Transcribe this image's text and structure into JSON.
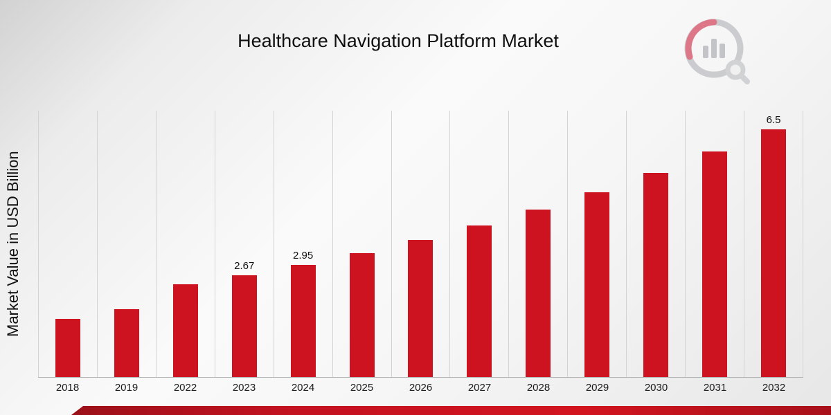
{
  "page": {
    "title": "Healthcare Navigation Platform Market"
  },
  "chart_data": {
    "type": "bar",
    "title": "Healthcare Navigation Platform Market",
    "xlabel": "",
    "ylabel": "Market Value in USD Billion",
    "categories": [
      "2018",
      "2019",
      "2022",
      "2023",
      "2024",
      "2025",
      "2026",
      "2027",
      "2028",
      "2029",
      "2030",
      "2031",
      "2032"
    ],
    "values": [
      1.52,
      1.79,
      2.43,
      2.67,
      2.95,
      3.26,
      3.6,
      3.98,
      4.4,
      4.86,
      5.37,
      5.93,
      6.5
    ],
    "data_labels": [
      "",
      "",
      "",
      "2.67",
      "2.95",
      "",
      "",
      "",
      "",
      "",
      "",
      "",
      "6.5"
    ],
    "ylim": [
      0,
      7
    ],
    "grid": "vertical-only",
    "legend": "none",
    "bar_color": "#cd1220",
    "gridline_color": "#d3d3d3"
  },
  "branding": {
    "logo_icon": "market-research-bar-chart-magnifier-logo",
    "footer_stripe_colors": [
      "#8e1016",
      "#d2141f"
    ]
  }
}
